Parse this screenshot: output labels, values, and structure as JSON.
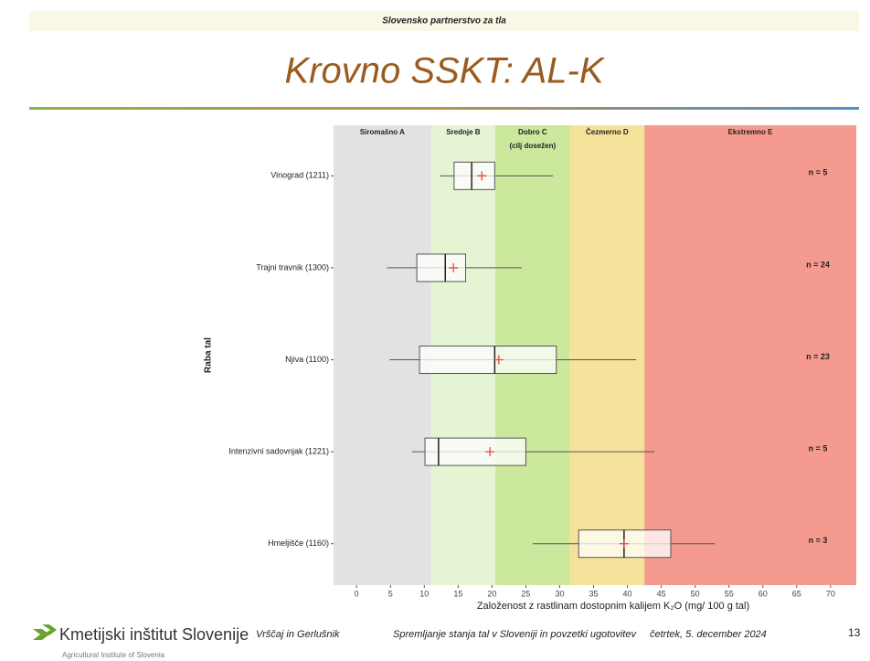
{
  "header": {
    "banner": "Slovensko partnerstvo za tla",
    "title": "Krovno SSKT: AL-K"
  },
  "chart_data": {
    "type": "boxplot",
    "orientation": "horizontal",
    "ylabel": "Raba tal",
    "xlabel": "Založenost z rastlinam dostopnim kalijem K₂O (mg/ 100 g tal)",
    "categories": [
      "Vinograd (1211)",
      "Trajni travnik (1300)",
      "Njiva (1100)",
      "Intenzivni sadovnjak (1221)",
      "Hmeljišče (1160)"
    ],
    "boxes": [
      {
        "min": 12.3,
        "q1": 14.4,
        "median": 17.0,
        "q3": 20.4,
        "max": 29.0,
        "mean": 18.5
      },
      {
        "min": 4.5,
        "q1": 8.9,
        "median": 13.1,
        "q3": 16.1,
        "max": 24.4,
        "mean": 14.3
      },
      {
        "min": 4.9,
        "q1": 9.3,
        "median": 20.4,
        "q3": 29.5,
        "max": 41.3,
        "mean": 21.0
      },
      {
        "min": 8.2,
        "q1": 10.1,
        "median": 12.1,
        "q3": 25.0,
        "max": 44.0,
        "mean": 19.7
      },
      {
        "min": 26.0,
        "q1": 32.8,
        "median": 39.5,
        "q3": 46.4,
        "max": 52.9,
        "mean": 39.5
      }
    ],
    "n_labels": [
      "n = 5",
      "n = 24",
      "n = 23",
      "n = 5",
      "n = 3"
    ],
    "zones": [
      {
        "name": "Siromašno A",
        "color": "#e2e2e2"
      },
      {
        "name": "Srednje B",
        "color": "#e5f4d3"
      },
      {
        "name": "Dobro C",
        "note": "(cilj dosežen)",
        "color": "#cbe89c"
      },
      {
        "name": "Čezmerno D",
        "color": "#f6e39b"
      },
      {
        "name": "Ekstremno E",
        "color": "#f59a8e"
      }
    ],
    "zone_edges": [
      11,
      20.5,
      31.5,
      42.5
    ],
    "box_color": "#555555",
    "mean_color": "#e8493f",
    "xlim": [
      -3.4,
      73.8
    ],
    "xticks": [
      0,
      5,
      10,
      15,
      20,
      25,
      30,
      35,
      40,
      45,
      50,
      55,
      60,
      65,
      70
    ]
  },
  "footer": {
    "logo": "Kmetijski inštitut Slovenije",
    "logo_sub": "Agricultural Institute of Slovenia",
    "authors": "Vrščaj in Gerlušnik",
    "topic": "Spremljanje stanja tal v Sloveniji in povzetki ugotovitev",
    "date": "četrtek, 5. december 2024",
    "page": "13"
  }
}
